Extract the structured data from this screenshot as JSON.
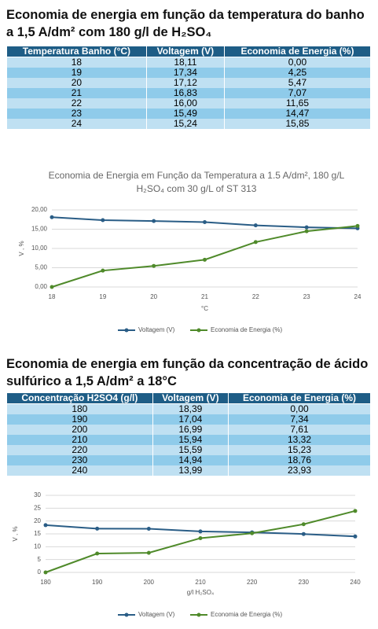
{
  "sections": [
    {
      "heading": "Economia de energia em função da temperatura do banho a 1,5 A/dm² com 180 g/l de H₂SO₄",
      "table": {
        "header": [
          "Temperatura Banho (°C)",
          "Voltagem (V)",
          "Economia de Energia (%)"
        ],
        "rows": [
          [
            "18",
            "18,11",
            "0,00"
          ],
          [
            "19",
            "17,34",
            "4,25"
          ],
          [
            "20",
            "17,12",
            "5,47"
          ],
          [
            "21",
            "16,83",
            "7,07"
          ],
          [
            "22",
            "16,00",
            "11,65"
          ],
          [
            "23",
            "15,49",
            "14,47"
          ],
          [
            "24",
            "15,24",
            "15,85"
          ]
        ]
      }
    },
    {
      "heading": "Economia de energia em função da concentração de ácido sulfúrico a 1,5 A/dm² a 18°C",
      "table": {
        "header": [
          "Concentração H2SO4 (g/l)",
          "Voltagem (V)",
          "Economia de Energia (%)"
        ],
        "rows": [
          [
            "180",
            "18,39",
            "0,00"
          ],
          [
            "190",
            "17,04",
            "7,34"
          ],
          [
            "200",
            "16,99",
            "7,61"
          ],
          [
            "210",
            "15,94",
            "13,32"
          ],
          [
            "220",
            "15,59",
            "15,23"
          ],
          [
            "230",
            "14,94",
            "18,76"
          ],
          [
            "240",
            "13,99",
            "23,93"
          ]
        ]
      }
    }
  ],
  "chart_data": [
    {
      "type": "line",
      "title": "Economia de Energia em Função da Temperatura a 1.5 A/dm², 180 g/L H₂SO₄ com 30 g/L of ST 313",
      "x_label": "°C",
      "y_label": "V , %",
      "x": [
        18,
        19,
        20,
        21,
        22,
        23,
        24
      ],
      "series": [
        {
          "name": "Voltagem (V)",
          "color": "#2a5d86",
          "values": [
            18.11,
            17.34,
            17.12,
            16.83,
            16.0,
            15.49,
            15.24
          ]
        },
        {
          "name": "Economia de Energia (%)",
          "color": "#4f8a2a",
          "values": [
            0.0,
            4.25,
            5.47,
            7.07,
            11.65,
            14.47,
            15.85
          ]
        }
      ],
      "xlim": [
        18,
        24
      ],
      "xticks": [
        18,
        19,
        20,
        21,
        22,
        23,
        24
      ],
      "ylim": [
        0,
        20
      ],
      "yticks": [
        {
          "value": 0,
          "label": "0,00"
        },
        {
          "value": 5,
          "label": "5,00"
        },
        {
          "value": 10,
          "label": "10,00"
        },
        {
          "value": 15,
          "label": "15,00"
        },
        {
          "value": 20,
          "label": "20,00"
        }
      ],
      "grid": true,
      "legend": "bottom"
    },
    {
      "type": "line",
      "x_label": "g/l H₂SO₄",
      "y_label": "V , %",
      "x": [
        180,
        190,
        200,
        210,
        220,
        230,
        240
      ],
      "series": [
        {
          "name": "Voltagem (V)",
          "color": "#2a5d86",
          "values": [
            18.39,
            17.04,
            16.99,
            15.94,
            15.59,
            14.94,
            13.99
          ]
        },
        {
          "name": "Economia de Energia (%)",
          "color": "#4f8a2a",
          "values": [
            0.0,
            7.34,
            7.61,
            13.32,
            15.23,
            18.76,
            23.93
          ]
        }
      ],
      "xlim": [
        180,
        240
      ],
      "xticks": [
        180,
        190,
        200,
        210,
        220,
        230,
        240
      ],
      "ylim": [
        0,
        30
      ],
      "yticks": [
        0,
        5,
        10,
        15,
        20,
        25,
        30
      ],
      "grid": true,
      "legend": "bottom"
    }
  ]
}
